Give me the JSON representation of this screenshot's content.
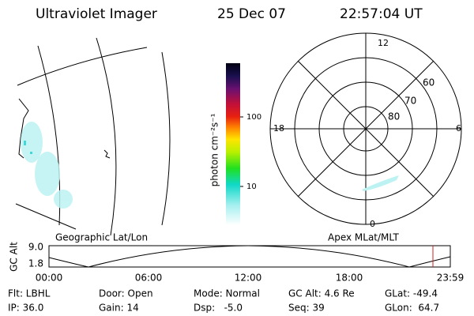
{
  "header": {
    "title": "Ultraviolet Imager",
    "date": "25 Dec 07",
    "time": "22:57:04 UT"
  },
  "map": {
    "label": "Geographic Lat/Lon"
  },
  "colorbar": {
    "label": "photon cm⁻²s⁻¹",
    "ticks": [
      "100",
      "10"
    ]
  },
  "polar": {
    "label": "Apex MLat/MLT",
    "hours": [
      "12",
      "18",
      "6",
      "0"
    ],
    "latitudes": [
      "60",
      "70",
      "80"
    ]
  },
  "altitude_plot": {
    "label": "GC Alt",
    "yticks": [
      "9.0",
      "1.8"
    ],
    "xticks": [
      "00:00",
      "06:00",
      "12:00",
      "18:00",
      "23:59"
    ]
  },
  "info": {
    "rows": [
      [
        "Flt: LBHL",
        "Door: Open",
        "Mode: Normal",
        "GC Alt: 4.6 Re",
        "GLat: -49.4"
      ],
      [
        "IP: 36.0",
        "Gain: 14",
        "Dsp:   -5.0",
        "Seq: 39",
        "GLon:  64.7"
      ]
    ]
  }
}
